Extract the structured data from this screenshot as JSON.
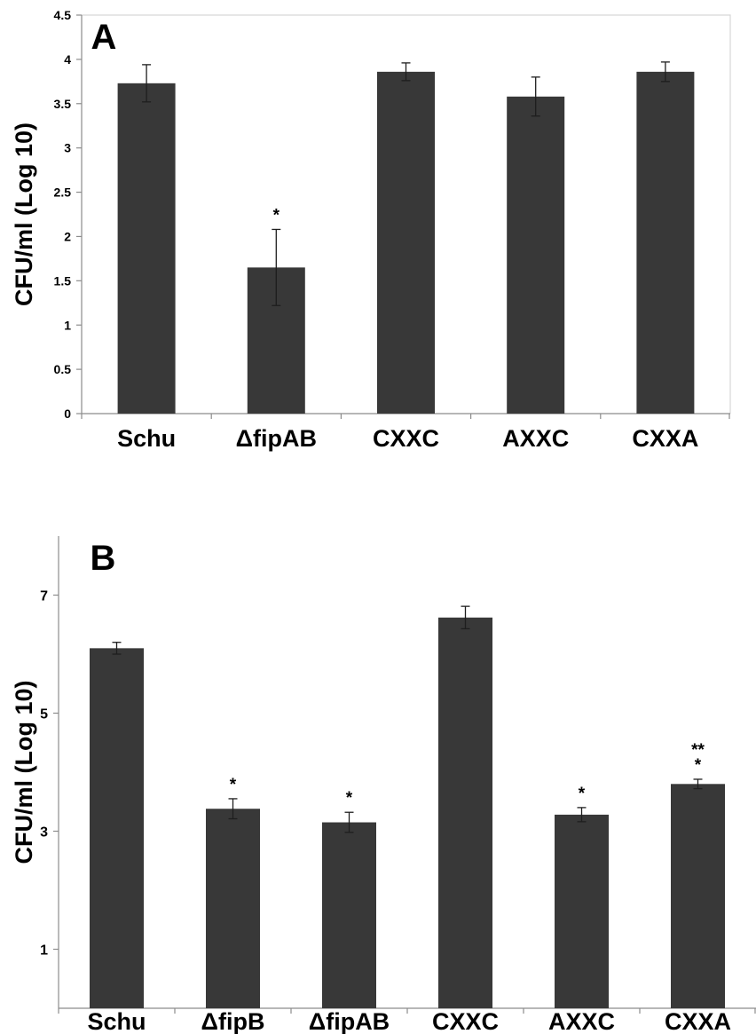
{
  "chart_data": [
    {
      "type": "bar",
      "panel_label": "A",
      "ylabel": "CFU/ml (Log 10)",
      "xlabel": "",
      "ylim": [
        0,
        4.5
      ],
      "yticks": [
        0,
        0.5,
        1,
        1.5,
        2,
        2.5,
        3,
        3.5,
        4,
        4.5
      ],
      "ytick_labels": [
        "0",
        "0.5",
        "1",
        "1.5",
        "2",
        "2.5",
        "3",
        "3.5",
        "4",
        "4.5"
      ],
      "categories": [
        "Schu",
        "ΔfipAB",
        "CXXC",
        "AXXC",
        "CXXA"
      ],
      "values": [
        3.73,
        1.65,
        3.86,
        3.58,
        3.86
      ],
      "errors": [
        0.21,
        0.43,
        0.1,
        0.22,
        0.11
      ],
      "annotations": [
        "",
        "*",
        "",
        "",
        ""
      ],
      "bar_color": "#383838",
      "grid": false
    },
    {
      "type": "bar",
      "panel_label": "B",
      "ylabel": "CFU/ml (Log 10)",
      "xlabel": "",
      "ylim": [
        0,
        8
      ],
      "yticks": [
        1,
        3,
        5,
        7
      ],
      "ytick_labels": [
        "1",
        "3",
        "5",
        "7"
      ],
      "categories": [
        "Schu",
        "ΔfipB",
        "ΔfipAB",
        "CXXC",
        "AXXC",
        "CXXA"
      ],
      "values": [
        6.1,
        3.38,
        3.15,
        6.62,
        3.28,
        3.8
      ],
      "errors": [
        0.1,
        0.17,
        0.17,
        0.19,
        0.12,
        0.08
      ],
      "annotations": [
        "",
        "*",
        "*",
        "",
        "*",
        "**\n*"
      ],
      "bar_color": "#383838",
      "grid": false
    }
  ]
}
